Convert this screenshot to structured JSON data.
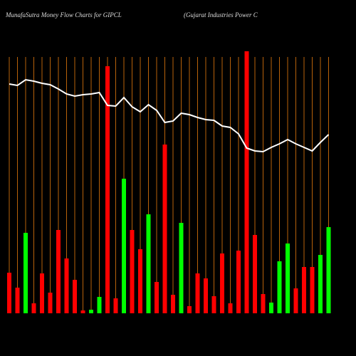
{
  "chart_data": {
    "type": "bar",
    "title": "MunafaSutra  Money Flow  Charts for GIPCL",
    "subtitle": "(Gujarat Industries Power C",
    "categories": [
      null,
      null,
      null,
      null,
      null,
      null,
      null,
      null,
      null,
      null,
      null,
      null,
      null,
      null,
      null,
      null,
      null,
      null,
      null,
      null,
      null,
      null,
      null,
      null,
      null,
      null,
      null,
      null,
      null,
      null,
      null,
      null,
      null,
      null,
      null,
      null,
      null,
      null,
      null,
      null
    ],
    "values": [
      57,
      36,
      113,
      14,
      56,
      29,
      117,
      77,
      47,
      4,
      5,
      23,
      347,
      21,
      189,
      117,
      90,
      139,
      44,
      237,
      26,
      127,
      10,
      56,
      49,
      24,
      84,
      14,
      88,
      368,
      110,
      27,
      15,
      73,
      98,
      35,
      65,
      65,
      82,
      121
    ],
    "bar_colors": [
      "#ff0000",
      "#ff0000",
      "#00ff00",
      "#ff0000",
      "#ff0000",
      "#ff0000",
      "#ff0000",
      "#ff0000",
      "#ff0000",
      "#ff0000",
      "#00ff00",
      "#00ff00",
      "#ff0000",
      "#ff0000",
      "#00ff00",
      "#ff0000",
      "#ff0000",
      "#00ff00",
      "#ff0000",
      "#ff0000",
      "#ff0000",
      "#00ff00",
      "#ff0000",
      "#ff0000",
      "#ff0000",
      "#ff0000",
      "#ff0000",
      "#ff0000",
      "#ff0000",
      "#ff0000",
      "#ff0000",
      "#ff0000",
      "#00ff00",
      "#00ff00",
      "#00ff00",
      "#ff0000",
      "#ff0000",
      "#ff0000",
      "#00ff00",
      "#00ff00"
    ],
    "line_values": [
      322,
      320,
      328,
      326,
      323,
      321,
      315,
      308,
      305,
      307,
      308,
      310,
      292,
      291,
      303,
      290,
      283,
      293,
      285,
      268,
      270,
      281,
      279,
      275,
      272,
      271,
      263,
      261,
      252,
      232,
      228,
      227,
      233,
      238,
      244,
      238,
      233,
      228,
      240,
      251
    ],
    "line_color": "#ffffff",
    "grid_color": "#b8620a",
    "ylim": [
      0,
      370
    ]
  }
}
